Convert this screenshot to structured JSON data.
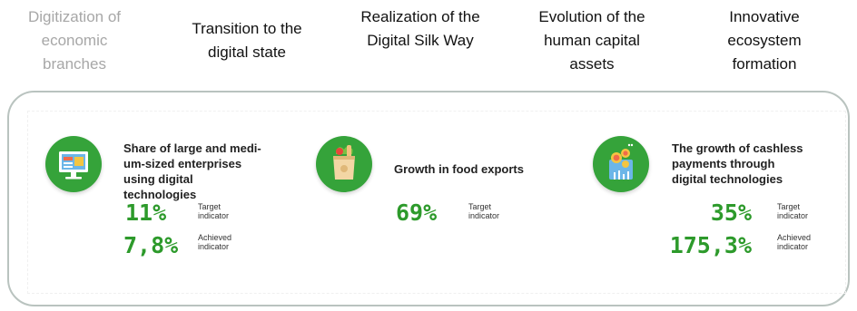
{
  "tabs": [
    {
      "label": "Digitization of economic branches",
      "active": false
    },
    {
      "label": "Transition to the digital state",
      "active": true
    },
    {
      "label": "Realization of the Digital Silk Way",
      "active": true
    },
    {
      "label": "Evolution of the human capital assets",
      "active": true
    },
    {
      "label": "Innovative ecosystem formation",
      "active": true
    }
  ],
  "cards": [
    {
      "icon": "monitor-icon",
      "title": "Share of large and medi-um-sized enterprises using digital technologies",
      "metrics": [
        {
          "value": "11%",
          "label": "Target indicator"
        },
        {
          "value": "7,8%",
          "label": "Achieved indicator"
        }
      ]
    },
    {
      "icon": "grocery-bag-icon",
      "title": "Growth in food exports",
      "metrics": [
        {
          "value": "69%",
          "label": "Target indicator"
        }
      ]
    },
    {
      "icon": "coins-card-icon",
      "title": "The growth of cashless payments through digital technologies",
      "metrics": [
        {
          "value": "35%",
          "label": "Target indicator"
        },
        {
          "value": "175,3%",
          "label": "Achieved indicator"
        }
      ]
    }
  ],
  "colors": {
    "accent": "#35a33a",
    "value": "#2d9a2b",
    "inactive_tab": "#a7a7a7",
    "border": "#b9c3bf"
  }
}
